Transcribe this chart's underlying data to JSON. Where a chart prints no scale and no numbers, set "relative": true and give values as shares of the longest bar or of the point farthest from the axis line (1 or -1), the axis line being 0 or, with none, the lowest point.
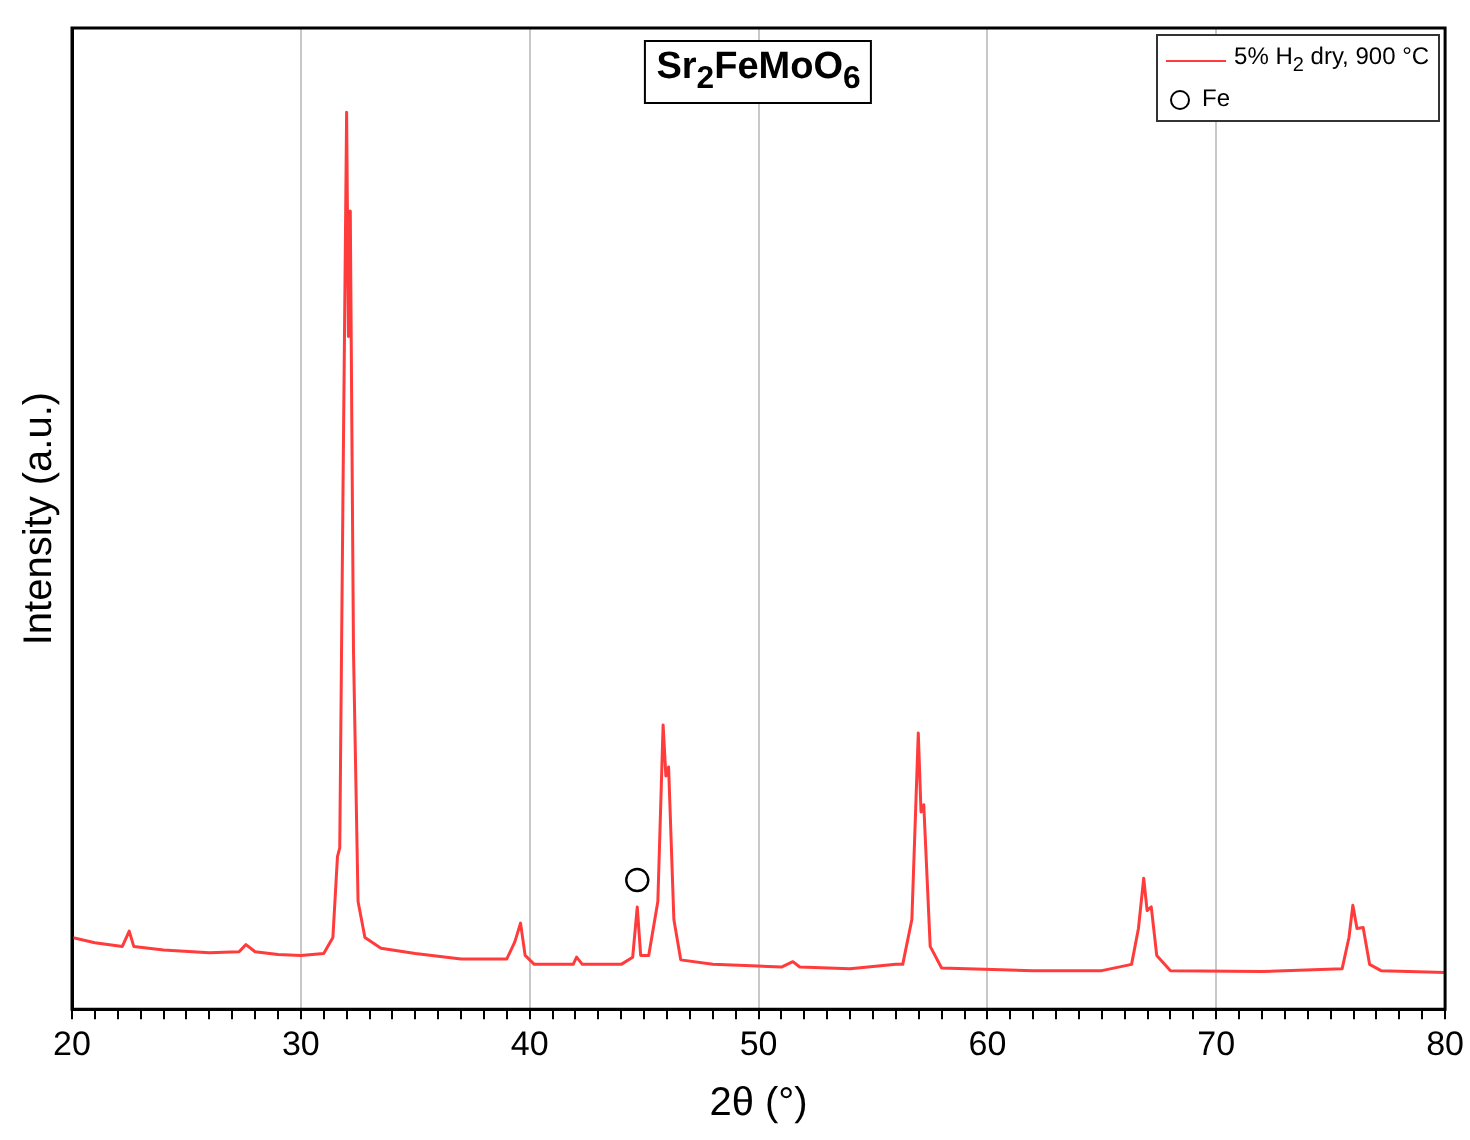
{
  "chart_data": {
    "type": "line",
    "title": "Sr$_{2}$FeMoO$_{6}$",
    "xlabel": "2θ (°)",
    "ylabel": "Intensity (a.u.)",
    "relative": true,
    "xlim": [
      20,
      80
    ],
    "xticks": [
      20,
      {
        "value": 21,
        "label": null
      },
      {
        "value": 22,
        "label": null
      },
      {
        "value": 23,
        "label": null
      },
      {
        "value": 24,
        "label": null
      },
      {
        "value": 25,
        "label": null
      },
      {
        "value": 26,
        "label": null
      },
      {
        "value": 27,
        "label": null
      },
      {
        "value": 28,
        "label": null
      },
      {
        "value": 29,
        "label": null
      },
      30,
      {
        "value": 31,
        "label": null
      },
      {
        "value": 32,
        "label": null
      },
      {
        "value": 33,
        "label": null
      },
      {
        "value": 34,
        "label": null
      },
      {
        "value": 35,
        "label": null
      },
      {
        "value": 36,
        "label": null
      },
      {
        "value": 37,
        "label": null
      },
      {
        "value": 38,
        "label": null
      },
      {
        "value": 39,
        "label": null
      },
      40,
      {
        "value": 41,
        "label": null
      },
      {
        "value": 42,
        "label": null
      },
      {
        "value": 43,
        "label": null
      },
      {
        "value": 44,
        "label": null
      },
      {
        "value": 45,
        "label": null
      },
      {
        "value": 46,
        "label": null
      },
      {
        "value": 47,
        "label": null
      },
      {
        "value": 48,
        "label": null
      },
      {
        "value": 49,
        "label": null
      },
      50,
      {
        "value": 51,
        "label": null
      },
      {
        "value": 52,
        "label": null
      },
      {
        "value": 53,
        "label": null
      },
      {
        "value": 54,
        "label": null
      },
      {
        "value": 55,
        "label": null
      },
      {
        "value": 56,
        "label": null
      },
      {
        "value": 57,
        "label": null
      },
      {
        "value": 58,
        "label": null
      },
      {
        "value": 59,
        "label": null
      },
      60,
      {
        "value": 61,
        "label": null
      },
      {
        "value": 62,
        "label": null
      },
      {
        "value": 63,
        "label": null
      },
      {
        "value": 64,
        "label": null
      },
      {
        "value": 65,
        "label": null
      },
      {
        "value": 66,
        "label": null
      },
      {
        "value": 67,
        "label": null
      },
      {
        "value": 68,
        "label": null
      },
      {
        "value": 69,
        "label": null
      },
      70,
      {
        "value": 71,
        "label": null
      },
      {
        "value": 72,
        "label": null
      },
      {
        "value": 73,
        "label": null
      },
      {
        "value": 74,
        "label": null
      },
      {
        "value": 75,
        "label": null
      },
      {
        "value": 76,
        "label": null
      },
      {
        "value": 77,
        "label": null
      },
      {
        "value": 78,
        "label": null
      },
      {
        "value": 79,
        "label": null
      },
      80
    ],
    "grid": "x",
    "legend": "top right",
    "series": [
      {
        "name": "5% H$_{2}$ dry, 900 °C",
        "color": "#ff3b3b",
        "marker": "none",
        "x": [
          20,
          21,
          22.2,
          22.5,
          22.7,
          24,
          26,
          27.3,
          27.6,
          28,
          29,
          30,
          31,
          31.4,
          31.6,
          31.7,
          31.85,
          32.0,
          32.08,
          32.16,
          32.3,
          32.5,
          32.8,
          33.5,
          35,
          37,
          39,
          39.35,
          39.6,
          39.8,
          40.2,
          41,
          41.9,
          42.05,
          42.3,
          44,
          44.5,
          44.7,
          44.85,
          45.2,
          45.6,
          45.83,
          45.95,
          46.07,
          46.3,
          46.6,
          48,
          51,
          51.5,
          51.8,
          54,
          56,
          56.3,
          56.7,
          56.98,
          57.1,
          57.22,
          57.5,
          58,
          62,
          65,
          66.3,
          66.6,
          66.83,
          66.98,
          67.16,
          67.4,
          68,
          72,
          75.5,
          75.8,
          75.97,
          76.15,
          76.42,
          76.7,
          77.2,
          80
        ],
        "values": [
          0.08,
          0.074,
          0.07,
          0.087,
          0.07,
          0.066,
          0.063,
          0.064,
          0.072,
          0.064,
          0.061,
          0.06,
          0.062,
          0.08,
          0.17,
          0.18,
          0.6,
          1.0,
          0.75,
          0.89,
          0.4,
          0.12,
          0.08,
          0.068,
          0.062,
          0.056,
          0.056,
          0.075,
          0.096,
          0.06,
          0.05,
          0.05,
          0.05,
          0.058,
          0.05,
          0.05,
          0.058,
          0.114,
          0.06,
          0.06,
          0.12,
          0.317,
          0.26,
          0.27,
          0.1,
          0.055,
          0.05,
          0.047,
          0.053,
          0.047,
          0.045,
          0.05,
          0.05,
          0.1,
          0.308,
          0.22,
          0.228,
          0.07,
          0.046,
          0.043,
          0.043,
          0.05,
          0.09,
          0.146,
          0.11,
          0.114,
          0.06,
          0.043,
          0.042,
          0.045,
          0.08,
          0.116,
          0.09,
          0.091,
          0.05,
          0.043,
          0.041
        ]
      },
      {
        "name": "Fe",
        "type": "scatter",
        "color": "#000000",
        "marker": "circle",
        "x": [
          44.7
        ],
        "values": [
          0.144
        ]
      }
    ]
  }
}
